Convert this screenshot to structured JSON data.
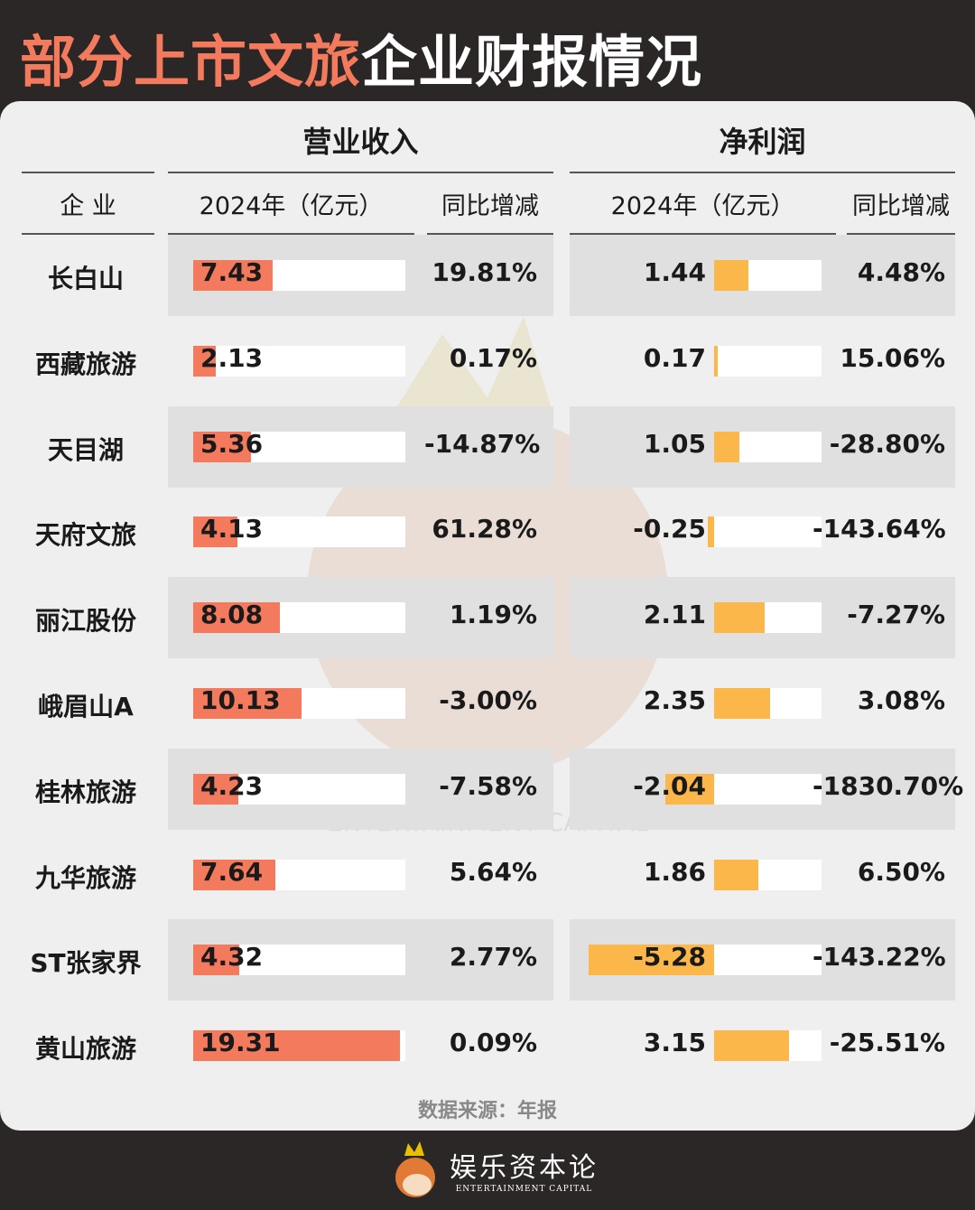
{
  "title": {
    "highlight": "部分上市文旅",
    "rest": "企业财报情况"
  },
  "chart_data": {
    "type": "table",
    "groups": [
      "营业收入",
      "净利润"
    ],
    "columns": [
      "企 业",
      "2024年（亿元）",
      "同比增减",
      "2024年（亿元）",
      "同比增减"
    ],
    "rows": [
      {
        "company": "长白山",
        "revenue": 7.43,
        "revenue_yoy": "19.81%",
        "profit": 1.44,
        "profit_yoy": "4.48%"
      },
      {
        "company": "西藏旅游",
        "revenue": 2.13,
        "revenue_yoy": "0.17%",
        "profit": 0.17,
        "profit_yoy": "15.06%"
      },
      {
        "company": "天目湖",
        "revenue": 5.36,
        "revenue_yoy": "-14.87%",
        "profit": 1.05,
        "profit_yoy": "-28.80%"
      },
      {
        "company": "天府文旅",
        "revenue": 4.13,
        "revenue_yoy": "61.28%",
        "profit": -0.25,
        "profit_yoy": "-143.64%"
      },
      {
        "company": "丽江股份",
        "revenue": 8.08,
        "revenue_yoy": "1.19%",
        "profit": 2.11,
        "profit_yoy": "-7.27%"
      },
      {
        "company": "峨眉山A",
        "revenue": 10.13,
        "revenue_yoy": "-3.00%",
        "profit": 2.35,
        "profit_yoy": "3.08%"
      },
      {
        "company": "桂林旅游",
        "revenue": 4.23,
        "revenue_yoy": "-7.58%",
        "profit": -2.04,
        "profit_yoy": "-1830.70%"
      },
      {
        "company": "九华旅游",
        "revenue": 7.64,
        "revenue_yoy": "5.64%",
        "profit": 1.86,
        "profit_yoy": "6.50%"
      },
      {
        "company": "ST张家界",
        "revenue": 4.32,
        "revenue_yoy": "2.77%",
        "profit": -5.28,
        "profit_yoy": "-143.22%"
      },
      {
        "company": "黄山旅游",
        "revenue": 19.31,
        "revenue_yoy": "0.09%",
        "profit": 3.15,
        "profit_yoy": "-25.51%"
      }
    ],
    "colors": {
      "revenue_bar": "#f47a5e",
      "profit_bar": "#fbb749",
      "title_accent": "#f47a5e"
    }
  },
  "source": "数据来源：年报",
  "logo": {
    "cn": "娱乐资本论",
    "en": "ENTERTAINMENT CAPITAL"
  },
  "watermark": {
    "en": "ENTERTAINMENT CAPITAL",
    "cn": "娱乐资本论"
  }
}
